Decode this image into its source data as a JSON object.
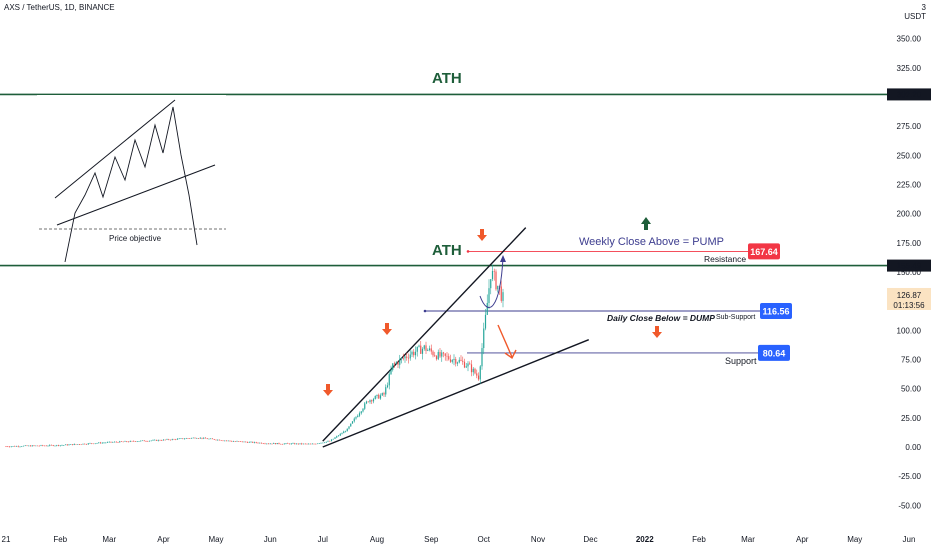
{
  "header": {
    "symbol": "AXS / TetherUS, 1D, BINANCE"
  },
  "price_unit": {
    "top": "3",
    "label": "USDT"
  },
  "inset": {
    "price_objective_label": "Price objective"
  },
  "annotations": {
    "ath_upper": "ATH",
    "ath_lower": "ATH",
    "weekly_close": "Weekly Close Above = PUMP",
    "resistance": "Resistance",
    "daily_close": "Daily Close Below = DUMP",
    "sub_support": "Sub-Support",
    "support": "Support"
  },
  "levels": {
    "ath": {
      "value": 302.2,
      "label": "302.20"
    },
    "resistance": {
      "value": 155.49,
      "label": "155.49"
    },
    "target": {
      "value": 167.64,
      "label": "167.64"
    },
    "sub_support": {
      "value": 116.56,
      "label": "116.56"
    },
    "support": {
      "value": 80.64,
      "label": "80.64"
    },
    "last": {
      "value": 126.87,
      "label": "126.87",
      "countdown": "01:13:56"
    }
  },
  "colors": {
    "up": "#26a69a",
    "down": "#ef5350",
    "ath_line": "#1e5e3a",
    "level_line": "#3d3d8f",
    "label_blue": "#2962ff",
    "label_red": "#f23645",
    "arrow": "#f0592b",
    "text_ann": "#3d3d8f",
    "green_arrow": "#1e5e3a"
  },
  "chart_data": {
    "type": "candlestick",
    "title": "AXS / TetherUS, 1D, BINANCE",
    "ylabel": "USDT",
    "ylim": [
      -62,
      360
    ],
    "y_ticks": [
      "350.00",
      "325.00",
      "300.00",
      "275.00",
      "250.00",
      "225.00",
      "200.00",
      "175.00",
      "150.00",
      "125.00",
      "100.00",
      "75.00",
      "50.00",
      "25.00",
      "0.00",
      "-25.00",
      "-50.00"
    ],
    "x_ticks": [
      "21",
      "Feb",
      "Mar",
      "Apr",
      "May",
      "Jun",
      "Jul",
      "Aug",
      "Sep",
      "Oct",
      "Nov",
      "Dec",
      "2022",
      "Feb",
      "Mar",
      "Apr",
      "May",
      "Jun"
    ],
    "price_path": [
      [
        "2021-01-01",
        0.5
      ],
      [
        "2021-02-01",
        1.5
      ],
      [
        "2021-03-01",
        4
      ],
      [
        "2021-04-01",
        6
      ],
      [
        "2021-04-20",
        8
      ],
      [
        "2021-05-10",
        5
      ],
      [
        "2021-06-01",
        3
      ],
      [
        "2021-06-25",
        2.5
      ],
      [
        "2021-07-05",
        5
      ],
      [
        "2021-07-15",
        15
      ],
      [
        "2021-07-22",
        30
      ],
      [
        "2021-07-27",
        40
      ],
      [
        "2021-08-05",
        45
      ],
      [
        "2021-08-10",
        70
      ],
      [
        "2021-08-20",
        80
      ],
      [
        "2021-08-28",
        85
      ],
      [
        "2021-09-05",
        78
      ],
      [
        "2021-09-15",
        75
      ],
      [
        "2021-09-22",
        70
      ],
      [
        "2021-09-28",
        60
      ],
      [
        "2021-10-02",
        110
      ],
      [
        "2021-10-05",
        150
      ],
      [
        "2021-10-10",
        135
      ],
      [
        "2021-10-12",
        126.87
      ]
    ],
    "horizontal_levels": [
      302.2,
      155.49,
      167.64,
      116.56,
      80.64
    ],
    "trendlines": [
      {
        "name": "upper",
        "from": [
          "2021-07-01",
          5
        ],
        "to": [
          "2021-10-25",
          188
        ]
      },
      {
        "name": "lower",
        "from": [
          "2021-07-01",
          0
        ],
        "to": [
          "2021-11-30",
          92
        ]
      }
    ]
  }
}
